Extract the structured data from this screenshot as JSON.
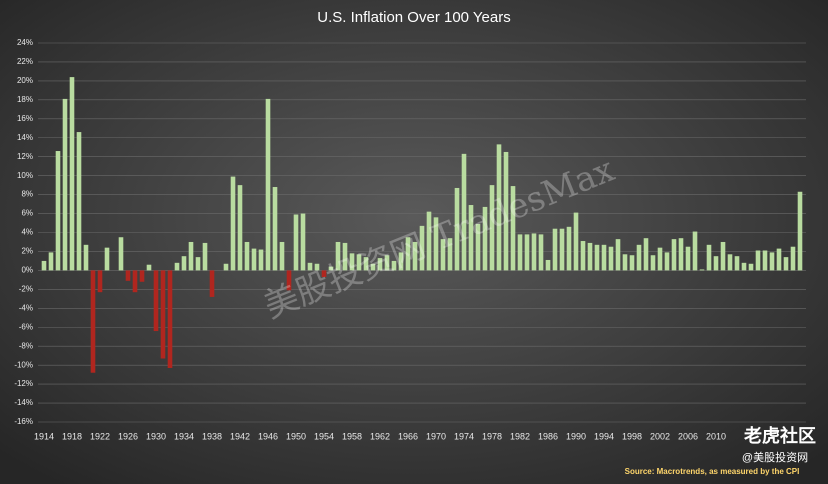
{
  "chart_data": {
    "type": "bar",
    "title": "U.S. Inflation Over 100 Years",
    "source": "Source: Macrotrends, as measured by the CPI",
    "watermarks": [
      "美股投资网 TradesMax",
      "老虎社区",
      "@美股投资网"
    ],
    "categories": [
      "1914",
      null,
      null,
      null,
      "1918",
      null,
      null,
      null,
      "1922",
      null,
      null,
      null,
      "1926",
      null,
      null,
      null,
      "1930",
      null,
      null,
      null,
      "1934",
      null,
      null,
      null,
      "1938",
      null,
      null,
      null,
      "1942",
      null,
      null,
      null,
      "1946",
      null,
      null,
      null,
      "1950",
      null,
      null,
      null,
      "1954",
      null,
      null,
      null,
      "1958",
      null,
      null,
      null,
      "1962",
      null,
      null,
      null,
      "1966",
      null,
      null,
      null,
      "1970",
      null,
      null,
      null,
      "1974",
      null,
      null,
      null,
      "1978",
      null,
      null,
      null,
      "1982",
      null,
      null,
      null,
      "1986",
      null,
      null,
      null,
      "1990",
      null,
      null,
      null,
      "1994",
      null,
      null,
      null,
      "1998",
      null,
      null,
      null,
      "2002",
      null,
      null,
      null,
      "2006",
      null,
      null,
      null,
      "2010",
      null,
      null,
      null,
      null,
      null,
      null,
      null,
      null,
      null,
      null,
      null,
      null
    ],
    "values": [
      1.0,
      1.9,
      12.6,
      18.1,
      20.4,
      14.6,
      2.7,
      -10.8,
      -2.3,
      2.4,
      0.0,
      3.5,
      -1.1,
      -2.3,
      -1.2,
      0.6,
      -6.4,
      -9.3,
      -10.3,
      0.8,
      1.5,
      3.0,
      1.4,
      2.9,
      -2.8,
      0.0,
      0.7,
      9.9,
      9.0,
      3.0,
      2.3,
      2.2,
      18.1,
      8.8,
      3.0,
      -2.1,
      5.9,
      6.0,
      0.8,
      0.7,
      -0.7,
      0.4,
      3.0,
      2.9,
      1.8,
      1.7,
      1.4,
      0.7,
      1.3,
      1.6,
      1.0,
      1.9,
      3.5,
      3.0,
      4.7,
      6.2,
      5.6,
      3.3,
      3.4,
      8.7,
      12.3,
      6.9,
      4.9,
      6.7,
      9.0,
      13.3,
      12.5,
      8.9,
      3.8,
      3.8,
      3.9,
      3.8,
      1.1,
      4.4,
      4.4,
      4.6,
      6.1,
      3.1,
      2.9,
      2.7,
      2.7,
      2.5,
      3.3,
      1.7,
      1.6,
      2.7,
      3.4,
      1.6,
      2.4,
      1.9,
      3.3,
      3.4,
      2.5,
      4.1,
      0.1,
      2.7,
      1.5,
      3.0,
      1.7,
      1.5,
      0.8,
      0.7,
      2.1,
      2.1,
      1.9,
      2.3,
      1.4,
      2.5,
      8.3
    ],
    "positive_color": "#b9dca0",
    "negative_color": "#b0261f",
    "ylim": [
      -16,
      24
    ],
    "yticks": [
      {
        "value": -16,
        "label": "-16%"
      },
      {
        "value": -14,
        "label": "-14%"
      },
      {
        "value": -12,
        "label": "-12%"
      },
      {
        "value": -10,
        "label": "-10%"
      },
      {
        "value": -8,
        "label": "-8%"
      },
      {
        "value": -6,
        "label": "-6%"
      },
      {
        "value": -4,
        "label": "-4%"
      },
      {
        "value": -2,
        "label": "-2%"
      },
      {
        "value": 0,
        "label": "0%"
      },
      {
        "value": 2,
        "label": "2%"
      },
      {
        "value": 4,
        "label": "4%"
      },
      {
        "value": 6,
        "label": "6%"
      },
      {
        "value": 8,
        "label": "8%"
      },
      {
        "value": 10,
        "label": "10%"
      },
      {
        "value": 12,
        "label": "12%"
      },
      {
        "value": 14,
        "label": "14%"
      },
      {
        "value": 16,
        "label": "16%"
      },
      {
        "value": 18,
        "label": "18%"
      },
      {
        "value": 20,
        "label": "20%"
      },
      {
        "value": 22,
        "label": "22%"
      },
      {
        "value": 24,
        "label": "24%"
      }
    ],
    "grid": true
  }
}
